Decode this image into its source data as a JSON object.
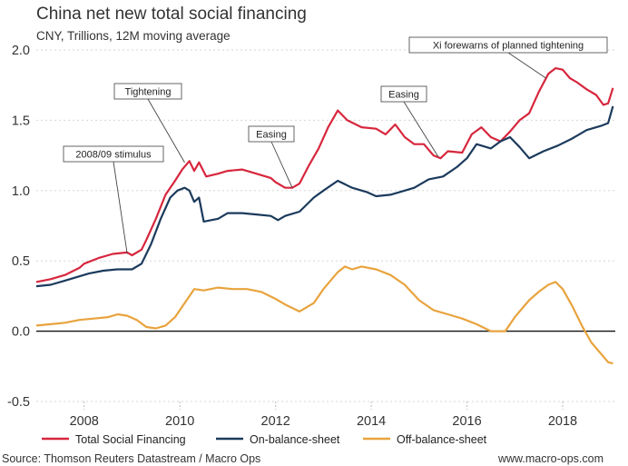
{
  "chart_data": {
    "type": "line",
    "title": "China net new total social financing",
    "subtitle": "CNY, Trillions, 12M moving average",
    "xlabel": "",
    "ylabel": "",
    "xlim": [
      2007.0,
      2019.1
    ],
    "ylim": [
      -0.5,
      2.0
    ],
    "yticks": [
      "2.0",
      "1.5",
      "1.0",
      "0.5",
      "0.0",
      "-0.5"
    ],
    "xticks": [
      "2008",
      "2010",
      "2012",
      "2014",
      "2016",
      "2018"
    ],
    "grid": "horizontal-dashed",
    "legend_position": "bottom",
    "series": [
      {
        "name": "Total Social Financing",
        "color": "#d7263d",
        "points": [
          [
            2007.0,
            0.35
          ],
          [
            2007.3,
            0.37
          ],
          [
            2007.6,
            0.4
          ],
          [
            2007.9,
            0.45
          ],
          [
            2008.0,
            0.48
          ],
          [
            2008.3,
            0.52
          ],
          [
            2008.6,
            0.55
          ],
          [
            2008.9,
            0.56
          ],
          [
            2009.0,
            0.54
          ],
          [
            2009.2,
            0.58
          ],
          [
            2009.3,
            0.65
          ],
          [
            2009.5,
            0.8
          ],
          [
            2009.7,
            0.97
          ],
          [
            2009.9,
            1.07
          ],
          [
            2010.05,
            1.15
          ],
          [
            2010.2,
            1.21
          ],
          [
            2010.3,
            1.14
          ],
          [
            2010.4,
            1.2
          ],
          [
            2010.55,
            1.1
          ],
          [
            2010.8,
            1.12
          ],
          [
            2011.0,
            1.14
          ],
          [
            2011.3,
            1.15
          ],
          [
            2011.6,
            1.12
          ],
          [
            2011.9,
            1.09
          ],
          [
            2012.0,
            1.06
          ],
          [
            2012.2,
            1.02
          ],
          [
            2012.35,
            1.02
          ],
          [
            2012.5,
            1.05
          ],
          [
            2012.7,
            1.18
          ],
          [
            2012.9,
            1.3
          ],
          [
            2013.1,
            1.45
          ],
          [
            2013.3,
            1.57
          ],
          [
            2013.5,
            1.5
          ],
          [
            2013.8,
            1.45
          ],
          [
            2014.1,
            1.44
          ],
          [
            2014.3,
            1.4
          ],
          [
            2014.5,
            1.47
          ],
          [
            2014.7,
            1.38
          ],
          [
            2014.9,
            1.33
          ],
          [
            2015.1,
            1.33
          ],
          [
            2015.3,
            1.25
          ],
          [
            2015.45,
            1.23
          ],
          [
            2015.6,
            1.28
          ],
          [
            2015.9,
            1.27
          ],
          [
            2016.1,
            1.4
          ],
          [
            2016.3,
            1.45
          ],
          [
            2016.5,
            1.38
          ],
          [
            2016.7,
            1.35
          ],
          [
            2016.9,
            1.42
          ],
          [
            2017.1,
            1.5
          ],
          [
            2017.3,
            1.55
          ],
          [
            2017.5,
            1.7
          ],
          [
            2017.7,
            1.83
          ],
          [
            2017.85,
            1.87
          ],
          [
            2018.0,
            1.86
          ],
          [
            2018.15,
            1.8
          ],
          [
            2018.3,
            1.77
          ],
          [
            2018.5,
            1.72
          ],
          [
            2018.7,
            1.68
          ],
          [
            2018.85,
            1.61
          ],
          [
            2018.95,
            1.62
          ],
          [
            2019.05,
            1.73
          ]
        ]
      },
      {
        "name": "On-balance-sheet",
        "color": "#1b3a5c",
        "points": [
          [
            2007.0,
            0.32
          ],
          [
            2007.3,
            0.33
          ],
          [
            2007.6,
            0.36
          ],
          [
            2007.9,
            0.39
          ],
          [
            2008.1,
            0.41
          ],
          [
            2008.4,
            0.43
          ],
          [
            2008.7,
            0.44
          ],
          [
            2009.0,
            0.44
          ],
          [
            2009.2,
            0.48
          ],
          [
            2009.4,
            0.62
          ],
          [
            2009.6,
            0.8
          ],
          [
            2009.8,
            0.95
          ],
          [
            2009.95,
            1.0
          ],
          [
            2010.1,
            1.02
          ],
          [
            2010.2,
            1.0
          ],
          [
            2010.3,
            0.92
          ],
          [
            2010.4,
            0.95
          ],
          [
            2010.5,
            0.78
          ],
          [
            2010.8,
            0.8
          ],
          [
            2011.0,
            0.84
          ],
          [
            2011.3,
            0.84
          ],
          [
            2011.6,
            0.83
          ],
          [
            2011.9,
            0.82
          ],
          [
            2012.05,
            0.79
          ],
          [
            2012.2,
            0.82
          ],
          [
            2012.5,
            0.85
          ],
          [
            2012.8,
            0.95
          ],
          [
            2013.0,
            1.0
          ],
          [
            2013.3,
            1.07
          ],
          [
            2013.6,
            1.02
          ],
          [
            2013.9,
            0.99
          ],
          [
            2014.1,
            0.96
          ],
          [
            2014.4,
            0.97
          ],
          [
            2014.7,
            1.0
          ],
          [
            2014.9,
            1.02
          ],
          [
            2015.2,
            1.08
          ],
          [
            2015.5,
            1.1
          ],
          [
            2015.8,
            1.17
          ],
          [
            2016.0,
            1.23
          ],
          [
            2016.2,
            1.33
          ],
          [
            2016.5,
            1.3
          ],
          [
            2016.7,
            1.35
          ],
          [
            2016.9,
            1.38
          ],
          [
            2017.1,
            1.31
          ],
          [
            2017.3,
            1.23
          ],
          [
            2017.6,
            1.28
          ],
          [
            2017.9,
            1.32
          ],
          [
            2018.2,
            1.37
          ],
          [
            2018.5,
            1.43
          ],
          [
            2018.8,
            1.46
          ],
          [
            2018.95,
            1.48
          ],
          [
            2019.05,
            1.6
          ]
        ]
      },
      {
        "name": "Off-balance-sheet",
        "color": "#e8a33d",
        "points": [
          [
            2007.0,
            0.04
          ],
          [
            2007.3,
            0.05
          ],
          [
            2007.6,
            0.06
          ],
          [
            2007.9,
            0.08
          ],
          [
            2008.2,
            0.09
          ],
          [
            2008.5,
            0.1
          ],
          [
            2008.7,
            0.12
          ],
          [
            2008.9,
            0.11
          ],
          [
            2009.1,
            0.08
          ],
          [
            2009.3,
            0.03
          ],
          [
            2009.5,
            0.02
          ],
          [
            2009.7,
            0.04
          ],
          [
            2009.9,
            0.1
          ],
          [
            2010.1,
            0.2
          ],
          [
            2010.3,
            0.3
          ],
          [
            2010.5,
            0.29
          ],
          [
            2010.8,
            0.31
          ],
          [
            2011.1,
            0.3
          ],
          [
            2011.4,
            0.3
          ],
          [
            2011.7,
            0.28
          ],
          [
            2012.0,
            0.23
          ],
          [
            2012.2,
            0.19
          ],
          [
            2012.5,
            0.14
          ],
          [
            2012.8,
            0.2
          ],
          [
            2013.0,
            0.3
          ],
          [
            2013.3,
            0.42
          ],
          [
            2013.45,
            0.46
          ],
          [
            2013.6,
            0.44
          ],
          [
            2013.8,
            0.46
          ],
          [
            2014.1,
            0.44
          ],
          [
            2014.4,
            0.4
          ],
          [
            2014.7,
            0.33
          ],
          [
            2015.0,
            0.22
          ],
          [
            2015.3,
            0.15
          ],
          [
            2015.6,
            0.12
          ],
          [
            2015.9,
            0.09
          ],
          [
            2016.2,
            0.05
          ],
          [
            2016.5,
            0.0
          ],
          [
            2016.8,
            0.0
          ],
          [
            2017.0,
            0.1
          ],
          [
            2017.3,
            0.22
          ],
          [
            2017.5,
            0.28
          ],
          [
            2017.7,
            0.33
          ],
          [
            2017.85,
            0.35
          ],
          [
            2018.0,
            0.3
          ],
          [
            2018.2,
            0.18
          ],
          [
            2018.4,
            0.04
          ],
          [
            2018.6,
            -0.08
          ],
          [
            2018.8,
            -0.16
          ],
          [
            2018.95,
            -0.22
          ],
          [
            2019.05,
            -0.23
          ]
        ]
      }
    ],
    "annotations": [
      {
        "text": "2008/09 stimulus",
        "x": 2008.9,
        "y": 0.55
      },
      {
        "text": "Tightening",
        "x": 2010.1,
        "y": 1.2
      },
      {
        "text": "Easing",
        "x": 2012.35,
        "y": 1.02
      },
      {
        "text": "Easing",
        "x": 2015.4,
        "y": 1.24
      },
      {
        "text": "Xi forewarns of planned tightening",
        "x": 2017.65,
        "y": 1.8
      }
    ]
  },
  "footer": {
    "source": "Source: Thomson Reuters Datastream / Macro Ops",
    "site": "www.macro-ops.com"
  }
}
